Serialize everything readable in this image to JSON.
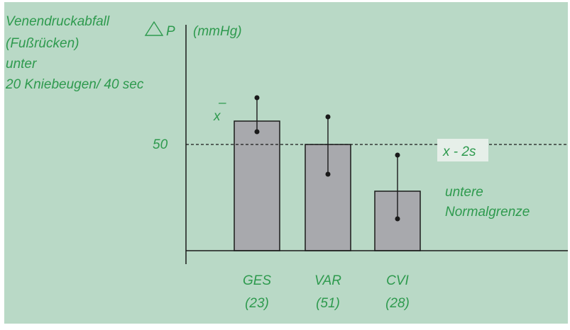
{
  "colors": {
    "background": "#b9d9c6",
    "text": "#2e9a4e",
    "bar_fill": "#a8a9ad",
    "bar_stroke": "#1a1a1a",
    "axis": "#1a1a1a",
    "label_box": "#e6efe9"
  },
  "chart_data": {
    "type": "bar",
    "title_lines": [
      "Venendruckabfall",
      "(Fußrücken)",
      "unter",
      "20 Kniebeugen/ 40 sec"
    ],
    "ylabel_symbol": "P",
    "ylabel_unit": "(mmHg)",
    "mean_label": "x",
    "mean_bar": "–",
    "y_tick": 50,
    "y_tick_label": "50",
    "threshold_label": "x - 2s",
    "threshold_note_lines": [
      "untere",
      "Normalgrenze"
    ],
    "ylim": [
      0,
      100
    ],
    "categories": [
      "GES",
      "VAR",
      "CVI"
    ],
    "counts": [
      "(23)",
      "(51)",
      "(28)"
    ],
    "values": [
      61,
      50,
      28
    ],
    "whisker_upper": [
      72,
      63,
      45
    ],
    "whisker_lower": [
      56,
      36,
      15
    ],
    "threshold": 50,
    "grid": false
  }
}
